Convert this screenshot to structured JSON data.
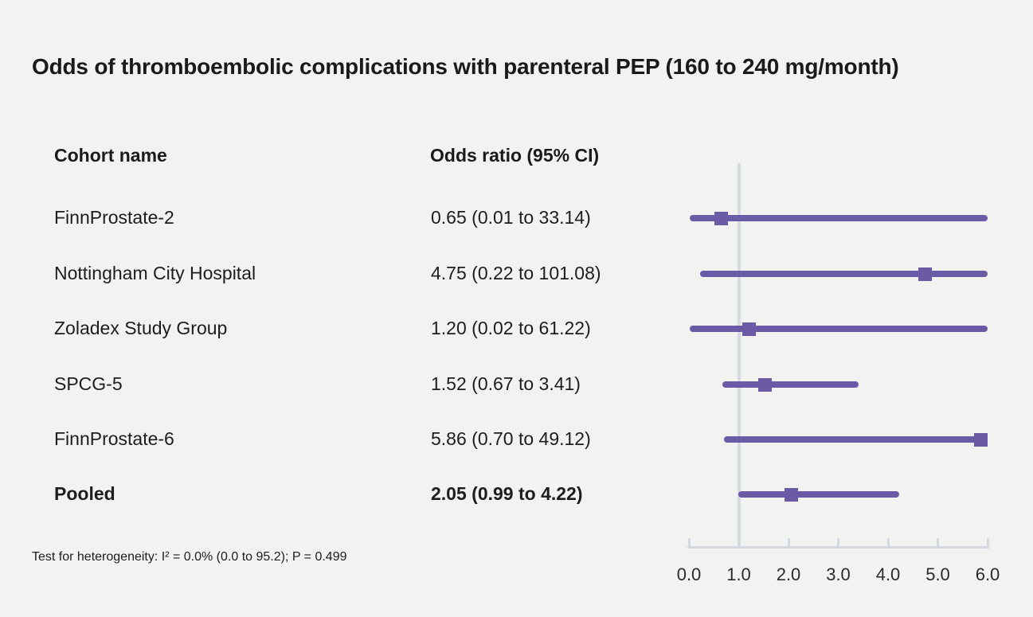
{
  "chart_data": {
    "type": "forest",
    "title": "Odds of thromboembolic complications with parenteral PEP (160 to 240 mg/month)",
    "column_headers": {
      "cohort": "Cohort name",
      "odds": "Odds ratio (95% CI)"
    },
    "rows": [
      {
        "name": "FinnProstate-2",
        "or": 0.65,
        "ci_low": 0.01,
        "ci_high": 33.14,
        "or_label": "0.65 (0.01 to 33.14)",
        "emphasis": false
      },
      {
        "name": "Nottingham City Hospital",
        "or": 4.75,
        "ci_low": 0.22,
        "ci_high": 101.08,
        "or_label": "4.75 (0.22 to 101.08)",
        "emphasis": false
      },
      {
        "name": "Zoladex Study Group",
        "or": 1.2,
        "ci_low": 0.02,
        "ci_high": 61.22,
        "or_label": "1.20 (0.02 to 61.22)",
        "emphasis": false
      },
      {
        "name": "SPCG-5",
        "or": 1.52,
        "ci_low": 0.67,
        "ci_high": 3.41,
        "or_label": "1.52 (0.67 to 3.41)",
        "emphasis": false
      },
      {
        "name": "FinnProstate-6",
        "or": 5.86,
        "ci_low": 0.7,
        "ci_high": 49.12,
        "or_label": "5.86 (0.70 to 49.12)",
        "emphasis": false
      },
      {
        "name": "Pooled",
        "or": 2.05,
        "ci_low": 0.99,
        "ci_high": 4.22,
        "or_label": "2.05 (0.99 to 4.22)",
        "emphasis": true
      }
    ],
    "xlabel": "",
    "xlim": [
      0,
      6
    ],
    "x_ticks": [
      0,
      1,
      2,
      3,
      4,
      5,
      6
    ],
    "x_tick_labels": [
      "0.0",
      "1.0",
      "2.0",
      "3.0",
      "4.0",
      "5.0",
      "6.0"
    ],
    "reference_value": 1.0,
    "legend": null,
    "grid": false,
    "footnote": "Test for heterogeneity: I² = 0.0% (0.0 to 95.2); P = 0.499",
    "colors": {
      "marker": "#6b5aa5",
      "axis": "#d4d9e2",
      "background": "#f2f2f1",
      "text": "#1a1a1a"
    }
  }
}
